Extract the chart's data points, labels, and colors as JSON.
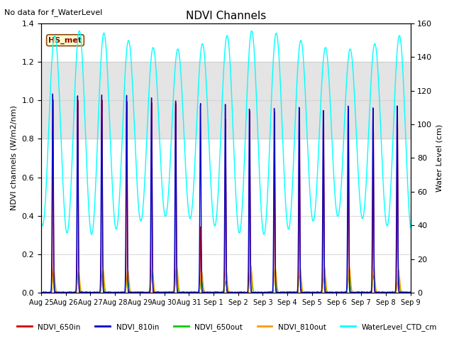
{
  "title": "NDVI Channels",
  "ylabel_left": "NDVI channels (W/m2/nm)",
  "ylabel_right": "Water Level (cm)",
  "no_data_text": "No data for f_WaterLevel",
  "station_label": "HS_met",
  "ylim_left": [
    0.0,
    1.4
  ],
  "ylim_right": [
    0,
    160
  ],
  "yticks_right": [
    0,
    20,
    40,
    60,
    80,
    100,
    120,
    140,
    160
  ],
  "yticks_left": [
    0.0,
    0.2,
    0.4,
    0.6,
    0.8,
    1.0,
    1.2,
    1.4
  ],
  "x_labels": [
    "Aug 25",
    "Aug 26",
    "Aug 27",
    "Aug 28",
    "Aug 29",
    "Aug 30",
    "Aug 31",
    "Sep 1",
    "Sep 2",
    "Sep 3",
    "Sep 4",
    "Sep 5",
    "Sep 6",
    "Sep 7",
    "Sep 8",
    "Sep 9"
  ],
  "legend_entries": [
    {
      "label": "NDVI_650in",
      "color": "#cc0000"
    },
    {
      "label": "NDVI_810in",
      "color": "#0000cc"
    },
    {
      "label": "NDVI_650out",
      "color": "#00cc00"
    },
    {
      "label": "NDVI_810out",
      "color": "#ff9900"
    },
    {
      "label": "WaterLevel_CTD_cm",
      "color": "cyan"
    }
  ],
  "shaded_band": [
    0.8,
    1.2
  ],
  "colors": {
    "NDVI_650in": "#cc0000",
    "NDVI_810in": "#0000cc",
    "NDVI_650out": "#00cc00",
    "NDVI_810out": "#ff9900",
    "WaterLevel": "cyan"
  },
  "n_days": 15,
  "n_pts": 1500
}
